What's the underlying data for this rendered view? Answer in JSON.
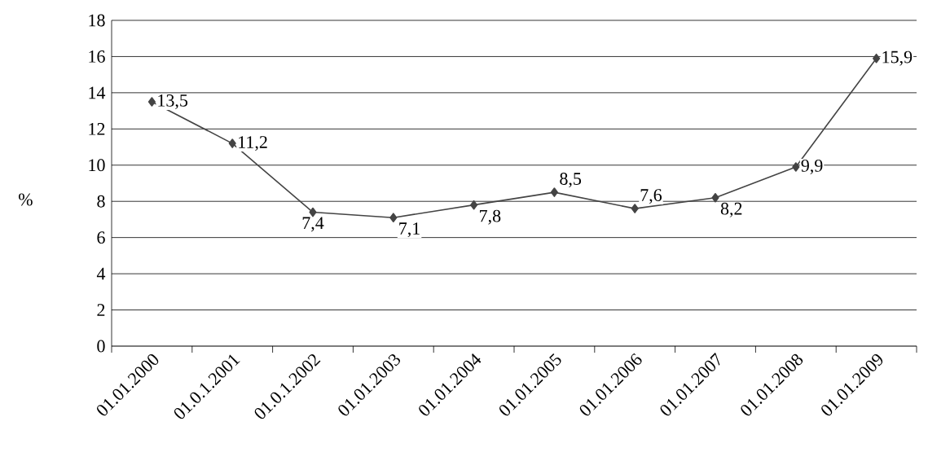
{
  "chart_data": {
    "type": "line",
    "ylabel": "%",
    "categories": [
      "01.01.2000",
      "01.0.1.2001",
      "01.0.1.2002",
      "01.01.2003",
      "01.01.2004",
      "01.01.2005",
      "01.01.2006",
      "01.01.2007",
      "01.01.2008",
      "01.01.2009"
    ],
    "values": [
      13.5,
      11.2,
      7.4,
      7.1,
      7.8,
      8.5,
      7.6,
      8.2,
      9.9,
      15.9
    ],
    "value_labels": [
      "13,5",
      "11,2",
      "7,4",
      "7,1",
      "7,8",
      "8,5",
      "7,6",
      "8,2",
      "9,9",
      "15,9"
    ],
    "color": "#444444",
    "marker": "diamond",
    "line_style": "solid",
    "ylim": [
      0,
      18
    ],
    "yticks": [
      0,
      2,
      4,
      6,
      8,
      10,
      12,
      14,
      16,
      18
    ],
    "grid": "y"
  }
}
